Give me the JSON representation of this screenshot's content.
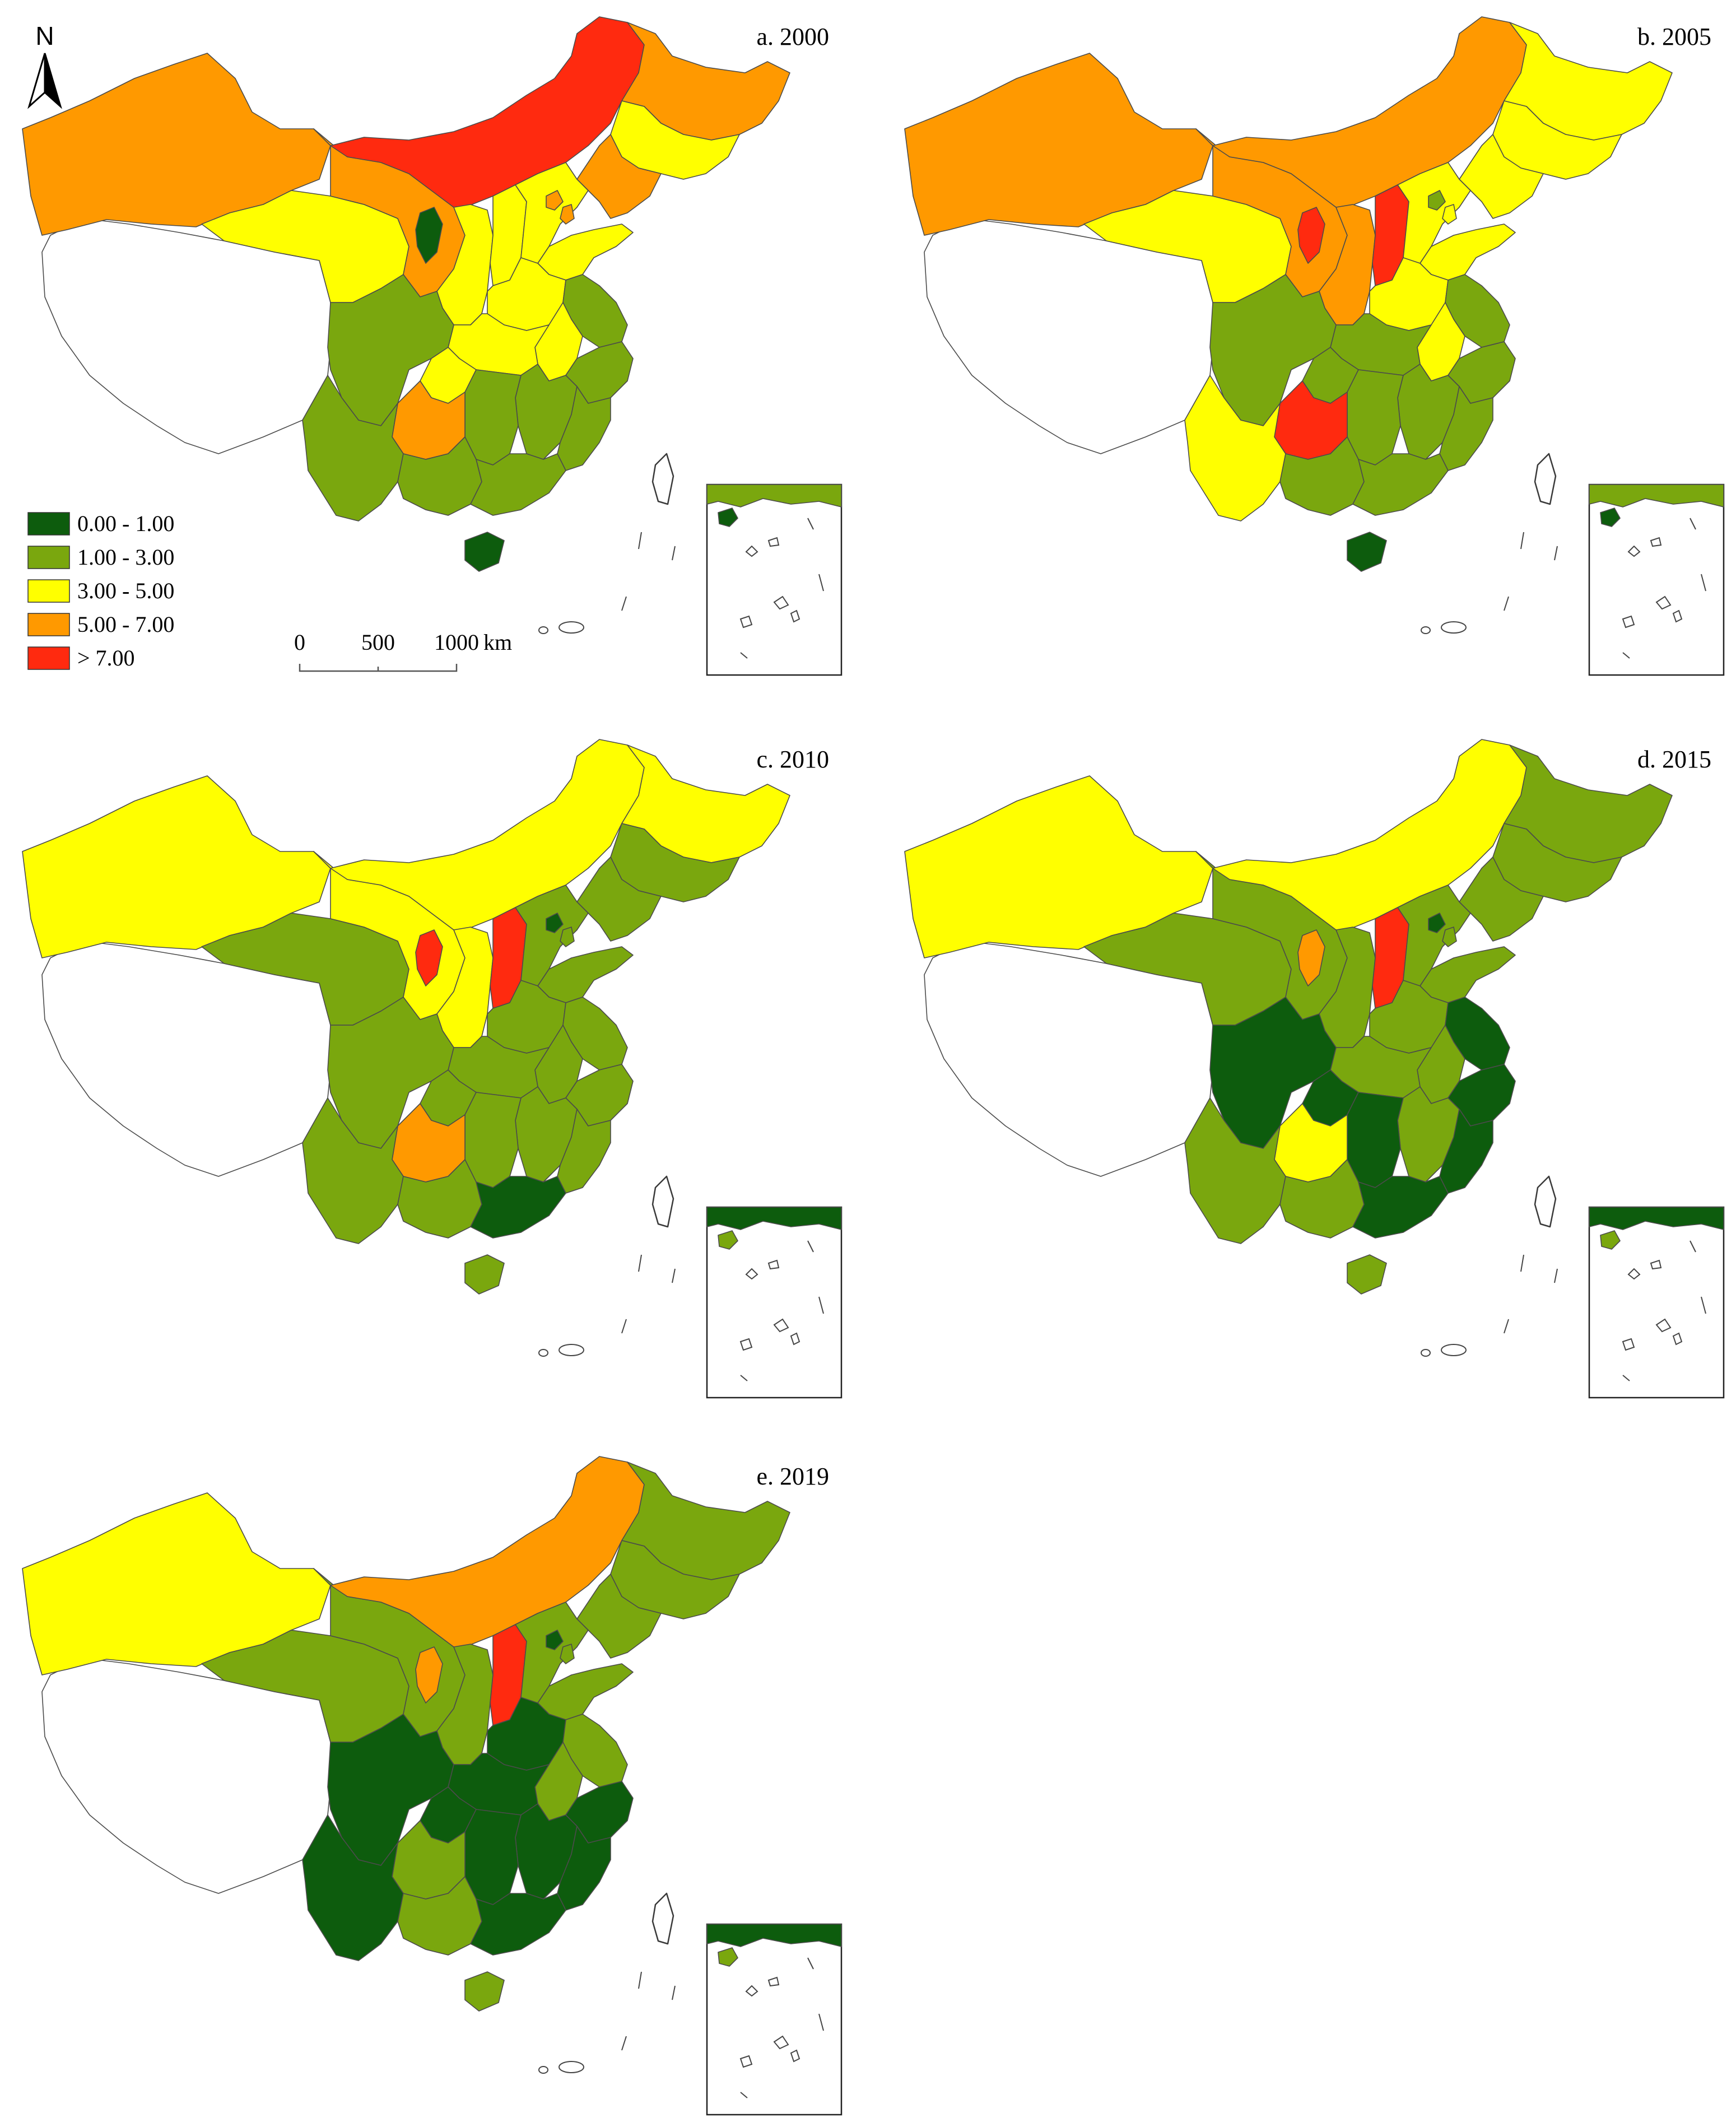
{
  "colors": {
    "class_1": "#0d5c0d",
    "class_2": "#7aa70e",
    "class_3": "#ffff00",
    "class_4": "#ff9900",
    "class_5": "#ff2a0f",
    "no_data": "#ffffff"
  },
  "north_arrow": {
    "label": "N"
  },
  "legend": {
    "items": [
      {
        "label": "0.00 - 1.00",
        "class": "class_1"
      },
      {
        "label": "1.00 - 3.00",
        "class": "class_2"
      },
      {
        "label": "3.00 - 5.00",
        "class": "class_3"
      },
      {
        "label": "5.00 - 7.00",
        "class": "class_4"
      },
      {
        "label": "> 7.00",
        "class": "class_5"
      }
    ]
  },
  "scale_bar": {
    "label_0": "0",
    "label_1": "500",
    "label_2": "1000",
    "unit": "km"
  },
  "panels": [
    {
      "title": "a. 2000"
    },
    {
      "title": "b. 2005"
    },
    {
      "title": "c. 2010"
    },
    {
      "title": "d. 2015"
    },
    {
      "title": "e. 2019"
    }
  ],
  "map_data": {
    "type": "choropleth",
    "region_classes": {
      "Xinjiang": [
        "class_4",
        "class_4",
        "class_3",
        "class_3",
        "class_3"
      ],
      "Tibet": [
        "no_data",
        "no_data",
        "no_data",
        "no_data",
        "no_data"
      ],
      "Qinghai": [
        "class_3",
        "class_3",
        "class_2",
        "class_2",
        "class_2"
      ],
      "Gansu": [
        "class_4",
        "class_4",
        "class_3",
        "class_2",
        "class_2"
      ],
      "Inner Mongolia": [
        "class_5",
        "class_4",
        "class_3",
        "class_3",
        "class_4"
      ],
      "Ningxia": [
        "class_1",
        "class_5",
        "class_5",
        "class_4",
        "class_4"
      ],
      "Shaanxi": [
        "class_3",
        "class_4",
        "class_3",
        "class_2",
        "class_2"
      ],
      "Shanxi": [
        "class_3",
        "class_5",
        "class_5",
        "class_5",
        "class_5"
      ],
      "Hebei": [
        "class_3",
        "class_3",
        "class_2",
        "class_2",
        "class_2"
      ],
      "Beijing": [
        "class_4",
        "class_2",
        "class_1",
        "class_1",
        "class_1"
      ],
      "Tianjin": [
        "class_4",
        "class_3",
        "class_2",
        "class_2",
        "class_2"
      ],
      "Heilongjiang": [
        "class_4",
        "class_3",
        "class_3",
        "class_2",
        "class_2"
      ],
      "Jilin": [
        "class_3",
        "class_3",
        "class_2",
        "class_2",
        "class_2"
      ],
      "Liaoning": [
        "class_4",
        "class_3",
        "class_2",
        "class_2",
        "class_2"
      ],
      "Shandong": [
        "class_3",
        "class_3",
        "class_2",
        "class_2",
        "class_2"
      ],
      "Henan": [
        "class_3",
        "class_3",
        "class_2",
        "class_2",
        "class_1"
      ],
      "Jiangsu": [
        "class_2",
        "class_2",
        "class_2",
        "class_1",
        "class_2"
      ],
      "Anhui": [
        "class_3",
        "class_3",
        "class_2",
        "class_2",
        "class_2"
      ],
      "Hubei": [
        "class_3",
        "class_2",
        "class_2",
        "class_2",
        "class_1"
      ],
      "Sichuan": [
        "class_2",
        "class_2",
        "class_2",
        "class_1",
        "class_1"
      ],
      "Chongqing": [
        "class_3",
        "class_2",
        "class_2",
        "class_1",
        "class_1"
      ],
      "Guizhou": [
        "class_4",
        "class_5",
        "class_4",
        "class_3",
        "class_2"
      ],
      "Yunnan": [
        "class_2",
        "class_3",
        "class_2",
        "class_2",
        "class_1"
      ],
      "Hunan": [
        "class_2",
        "class_2",
        "class_2",
        "class_1",
        "class_1"
      ],
      "Jiangxi": [
        "class_2",
        "class_2",
        "class_2",
        "class_2",
        "class_1"
      ],
      "Zhejiang": [
        "class_2",
        "class_2",
        "class_2",
        "class_1",
        "class_1"
      ],
      "Fujian": [
        "class_2",
        "class_2",
        "class_2",
        "class_1",
        "class_1"
      ],
      "Guangdong": [
        "class_2",
        "class_2",
        "class_1",
        "class_1",
        "class_1"
      ],
      "Guangxi": [
        "class_2",
        "class_2",
        "class_2",
        "class_2",
        "class_2"
      ],
      "Hainan": [
        "class_1",
        "class_1",
        "class_2",
        "class_2",
        "class_2"
      ]
    }
  }
}
